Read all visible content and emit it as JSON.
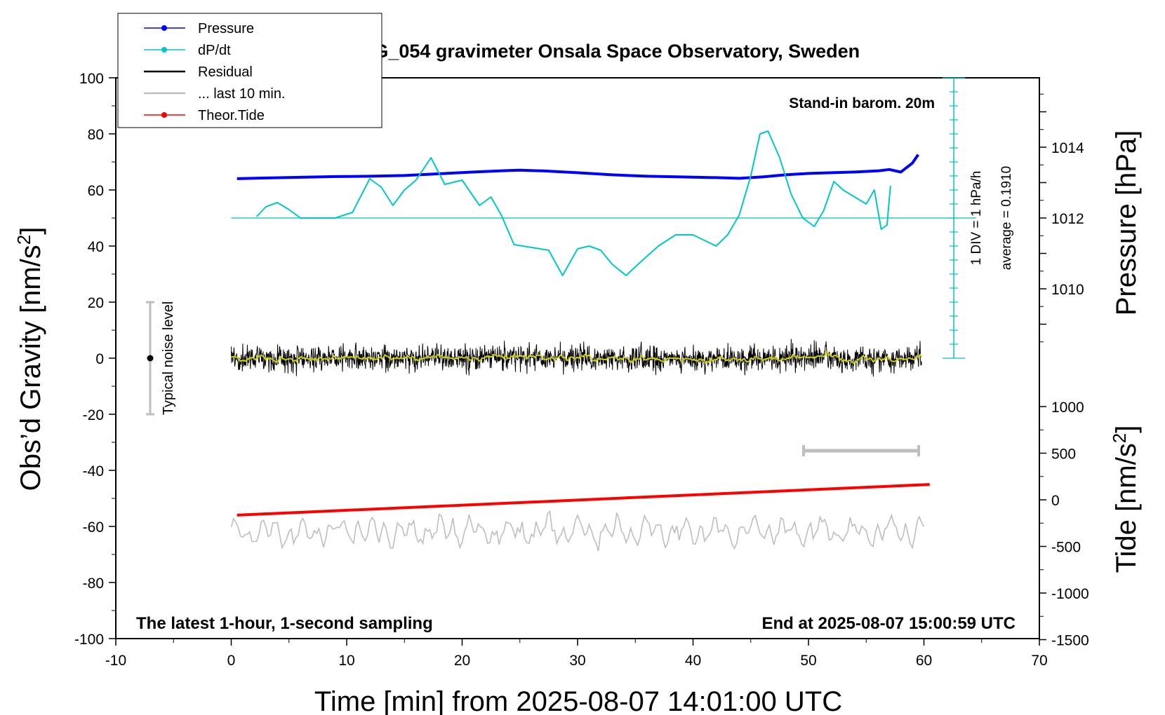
{
  "chart_data": {
    "type": "line",
    "title": "SCG_054 gravimeter Onsala Space Observatory, Sweden",
    "xlabel": "Time [min] from 2025-08-07 14:01:00 UTC",
    "ylabel_left": "Obs’d Gravity [nm/s",
    "ylabel_left_sup": "2",
    "ylabel_left_end": "]",
    "ylabel_right_pressure": "Pressure [hPa]",
    "ylabel_right_tide": "Tide [nm/s",
    "ylabel_right_tide_sup": "2",
    "ylabel_right_tide_end": "]",
    "xlim": [
      -10,
      70
    ],
    "ylim_left": [
      -100,
      100
    ],
    "pressure_axis": {
      "ticks": [
        1010,
        1012,
        1014
      ],
      "tick_labels": [
        "1010",
        "1012",
        "1014"
      ],
      "range": [
        1008,
        1016
      ]
    },
    "tide_axis": {
      "ticks": [
        -1500,
        -1000,
        -500,
        0,
        500,
        1000
      ],
      "tick_labels": [
        "-1500",
        "-1000",
        "-500",
        "0",
        "500",
        "1000"
      ]
    },
    "x_ticks": [
      "-10",
      "0",
      "10",
      "20",
      "30",
      "40",
      "50",
      "60",
      "70"
    ],
    "y_ticks": [
      "-100",
      "-80",
      "-60",
      "-40",
      "-20",
      "0",
      "20",
      "40",
      "60",
      "80",
      "100"
    ],
    "annotations": {
      "barometer": "Stand-in barom. 20m",
      "latest": "The latest 1-hour, 1-second sampling",
      "end": "End at 2025-08-07 15:00:59 UTC",
      "noise": "Typical noise level",
      "div": "1 DIV = 1 hPa/h",
      "average": "average = 0.1910"
    },
    "legend": [
      {
        "label": "Pressure",
        "color": "#0000ff",
        "marker": true
      },
      {
        "label": "dP/dt",
        "color": "#00c8c8",
        "marker": true
      },
      {
        "label": "Residual",
        "color": "#000000",
        "marker": false
      },
      {
        "label": "... last 10 min.",
        "color": "#bebebe",
        "marker": false
      },
      {
        "label": "Theor.Tide",
        "color": "#ff0000",
        "marker": true
      }
    ],
    "series": [
      {
        "name": "Pressure",
        "color": "#0000ff",
        "x": [
          0.5,
          3,
          6,
          9,
          12,
          15,
          18,
          21,
          24,
          25,
          27,
          30,
          33,
          36,
          39,
          42,
          44,
          46,
          48,
          50,
          52,
          54,
          56,
          57,
          58,
          59,
          59.5
        ],
        "y": [
          1013.11,
          1013.13,
          1013.15,
          1013.17,
          1013.18,
          1013.2,
          1013.25,
          1013.3,
          1013.34,
          1013.35,
          1013.33,
          1013.28,
          1013.22,
          1013.18,
          1013.16,
          1013.14,
          1013.12,
          1013.16,
          1013.22,
          1013.26,
          1013.28,
          1013.3,
          1013.33,
          1013.37,
          1013.3,
          1013.55,
          1013.79
        ]
      },
      {
        "name": "dP/dt",
        "color": "#00c8c8",
        "x": [
          2.2,
          3,
          4,
          5,
          6,
          7,
          9,
          10.5,
          12,
          13,
          14,
          15,
          16,
          17.3,
          18.5,
          20,
          21.5,
          22.5,
          23.4,
          24.5,
          26,
          27.5,
          28.7,
          30,
          31,
          32,
          33,
          34.2,
          35.5,
          37,
          38.5,
          40,
          41,
          42,
          43,
          44,
          45,
          45.8,
          46.5,
          47.5,
          48.5,
          49.5,
          50.5,
          51.3,
          52.2,
          53,
          54,
          55,
          55.7,
          56.3,
          56.8,
          57.1
        ],
        "y": [
          0.1,
          0.8,
          1.1,
          0.6,
          0.0,
          0.0,
          0.0,
          0.4,
          2.8,
          2.2,
          0.9,
          2.0,
          2.7,
          4.3,
          2.4,
          2.7,
          0.9,
          1.5,
          0.2,
          -1.9,
          -2.1,
          -2.3,
          -4.1,
          -2.2,
          -2.0,
          -2.3,
          -3.3,
          -4.1,
          -3.1,
          -2.0,
          -1.2,
          -1.2,
          -1.6,
          -2.0,
          -1.2,
          0.2,
          3.0,
          6.0,
          6.2,
          4.3,
          1.7,
          0.0,
          -0.6,
          0.5,
          2.6,
          2.0,
          1.5,
          1.0,
          2.0,
          -0.8,
          -0.5,
          2.3
        ]
      },
      {
        "name": "Theor.Tide",
        "color": "#ff0000",
        "x": [
          0.5,
          60.5
        ],
        "y": [
          -165,
          165
        ]
      }
    ]
  }
}
